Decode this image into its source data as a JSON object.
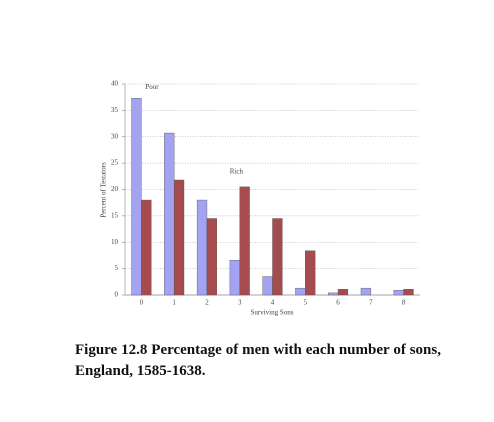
{
  "chart_data": {
    "type": "bar",
    "caption": "Figure 12.8  Percentage of men with each number of sons, England, 1585-1638.",
    "x_label": "Surviving Sons",
    "y_label": "Percent of Testators",
    "categories": [
      "0",
      "1",
      "2",
      "3",
      "4",
      "5",
      "6",
      "7",
      "8"
    ],
    "series": [
      {
        "name": "Poor",
        "color": "#a3a3f2",
        "values": [
          37.3,
          30.7,
          18,
          6.6,
          3.5,
          1.3,
          0.4,
          1.3,
          0.9
        ]
      },
      {
        "name": "Rich",
        "color": "#a64b4e",
        "values": [
          18,
          21.8,
          14.5,
          20.5,
          14.5,
          8.4,
          1.1,
          0,
          1.1
        ]
      }
    ],
    "ylim": [
      0,
      40
    ],
    "yticks": [
      0,
      5,
      10,
      15,
      20,
      25,
      30,
      35,
      40
    ],
    "grid": true
  }
}
